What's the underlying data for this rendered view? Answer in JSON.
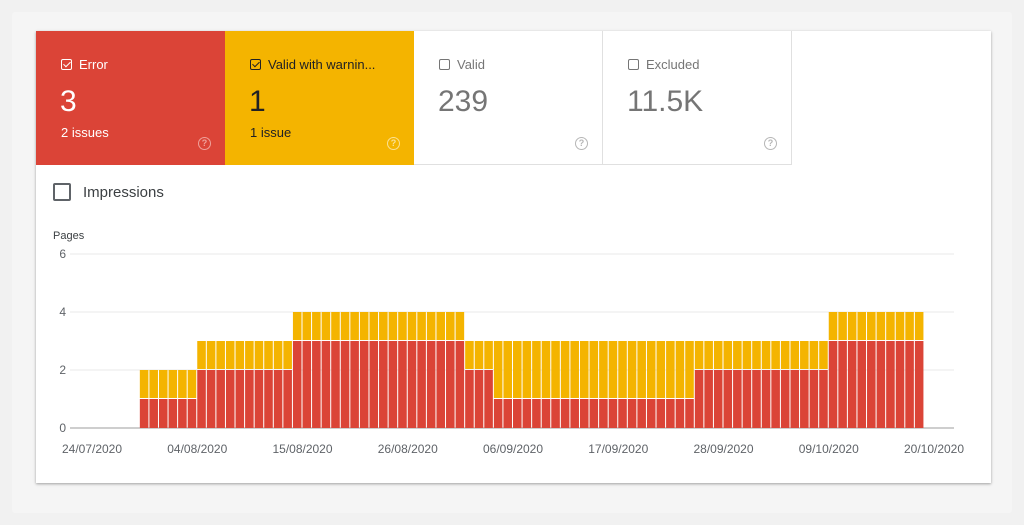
{
  "tiles": [
    {
      "label": "Error",
      "value": "3",
      "sub": "2 issues",
      "checked": true
    },
    {
      "label": "Valid with warnin...",
      "value": "1",
      "sub": "1 issue",
      "checked": true
    },
    {
      "label": "Valid",
      "value": "239",
      "sub": "",
      "checked": false
    },
    {
      "label": "Excluded",
      "value": "11.5K",
      "sub": "",
      "checked": false
    }
  ],
  "impressions_label": "Impressions",
  "chart_data": {
    "type": "bar",
    "stacked": true,
    "ylabel": "Pages",
    "ylim": [
      0,
      6
    ],
    "yticks": [
      0,
      2,
      4,
      6
    ],
    "grid": true,
    "x_tick_labels": [
      "24/07/2020",
      "04/08/2020",
      "15/08/2020",
      "26/08/2020",
      "06/09/2020",
      "17/09/2020",
      "28/09/2020",
      "09/10/2020",
      "20/10/2020"
    ],
    "x_start": "2020-07-24",
    "x_end": "2020-10-20",
    "segments": [
      {
        "from": "2020-07-29",
        "to": "2020-08-04",
        "error": 1,
        "warning": 1
      },
      {
        "from": "2020-08-04",
        "to": "2020-08-14",
        "error": 2,
        "warning": 1
      },
      {
        "from": "2020-08-14",
        "to": "2020-09-01",
        "error": 3,
        "warning": 1
      },
      {
        "from": "2020-09-01",
        "to": "2020-09-04",
        "error": 2,
        "warning": 1
      },
      {
        "from": "2020-09-04",
        "to": "2020-09-25",
        "error": 1,
        "warning": 2
      },
      {
        "from": "2020-09-25",
        "to": "2020-10-09",
        "error": 2,
        "warning": 1
      },
      {
        "from": "2020-10-09",
        "to": "2020-10-19",
        "error": 3,
        "warning": 1
      }
    ],
    "series": [
      {
        "name": "Error",
        "color": "#db4437"
      },
      {
        "name": "Valid with warnin...",
        "color": "#f4b400"
      }
    ]
  }
}
